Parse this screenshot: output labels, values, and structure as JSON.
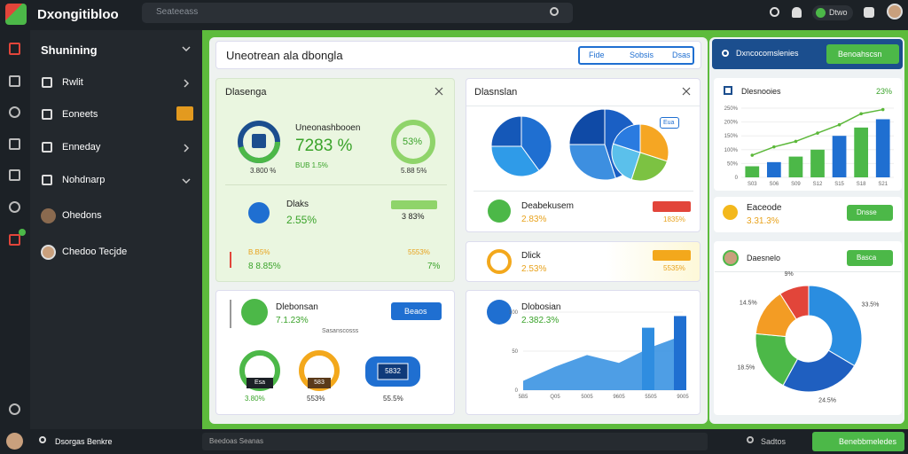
{
  "app": {
    "title": "Dxongitibloo",
    "search": "Seateeass",
    "status_pill": "Dtwo"
  },
  "sidebar": {
    "header": "Shunining",
    "items": [
      "Rwlit",
      "Eoneets",
      "Enneday",
      "Nohdnarp",
      "Ohedons",
      "Chedoo Tecjde"
    ]
  },
  "header": {
    "title": "Uneotrean ala dbongla",
    "tabs": [
      "Fide",
      "Sobsis",
      "Dsas"
    ]
  },
  "card_a": {
    "title": "Dlasenga",
    "metric_label": "Uneonashbooen",
    "metric_value": "7283 %",
    "metric_change": "BUB 1.5%",
    "ring_left_caption": "3.800 %",
    "ring_right": "53%",
    "ring_right_caption": "5.88 5%",
    "row1_label": "Dlaks",
    "row1_value": "2.55%",
    "row1_badge": "3 83%",
    "row2_left_top": "B.B5%",
    "row2_left": "8 8.85%",
    "row2_right_top": "5553%",
    "row2_right": "7%"
  },
  "card_b": {
    "title": "Dlasnslan",
    "pie_badge": "Eua",
    "row_label": "Deabekusem",
    "row_value": "2.83%",
    "row_caption": "1835%"
  },
  "card_c": {
    "label": "Dlick",
    "value": "2.53%",
    "caption": "5535%"
  },
  "card_d": {
    "title": "Dlebonsan",
    "value": "7.1.23%",
    "button": "Beaos",
    "caption": "Sasanscosss",
    "gauges": [
      "3.80%",
      "553%",
      "55.5%"
    ],
    "gauge_inner": [
      "Esa",
      "583",
      "5832"
    ]
  },
  "card_e": {
    "title": "Dlobosian",
    "value": "2.382.3%"
  },
  "right": {
    "header": "Dxncocomslenies",
    "button": "Benoahscsn",
    "card1_title": "Dlesnooies",
    "card1_value": "23%",
    "card2_label": "Eaceode",
    "card2_value": "3.31.3%",
    "card2_button": "Dnsse",
    "card3_title": "Daesnelo",
    "card3_button": "Basca"
  },
  "footer": {
    "user": "Dsorgas Benkre",
    "input": "Beedoas Seanas",
    "status": "Sadtos",
    "button": "Benebbmeledes"
  },
  "charts": {
    "pie_a": {
      "type": "pie",
      "values": [
        40,
        35,
        25
      ],
      "colors": [
        "#1f6fd1",
        "#2f9be8",
        "#1558b8"
      ]
    },
    "pie_b": {
      "type": "pie",
      "values": [
        45,
        30,
        25
      ],
      "colors": [
        "#1a5fc4",
        "#3d8fe0",
        "#0f4aa6"
      ]
    },
    "pie_c": {
      "type": "pie",
      "values": [
        30,
        25,
        25,
        20
      ],
      "colors": [
        "#f5a623",
        "#7cc242",
        "#5bc0eb",
        "#2a7be0"
      ]
    },
    "combo": {
      "type": "bar",
      "categories": [
        "S03",
        "S06",
        "S09",
        "S12",
        "S15",
        "S18",
        "S21"
      ],
      "series": [
        {
          "type": "bar",
          "colors": [
            "#4cb848",
            "#1f6fd1",
            "#4cb848",
            "#4cb848",
            "#1f6fd1",
            "#4cb848",
            "#1f6fd1"
          ],
          "values": [
            40,
            55,
            75,
            100,
            150,
            180,
            210
          ]
        },
        {
          "type": "line",
          "color": "#5cb83a",
          "values": [
            80,
            110,
            130,
            160,
            190,
            230,
            245
          ]
        }
      ],
      "ylim": [
        0,
        250
      ],
      "yticks": [
        0,
        {
          "value": 50,
          "label": "50%"
        },
        {
          "value": 100,
          "label": "100%"
        },
        {
          "value": 150,
          "label": "150%"
        },
        {
          "value": 200,
          "label": "200%"
        },
        {
          "value": 250,
          "label": "250%"
        }
      ]
    },
    "area": {
      "type": "area",
      "categories": [
        "5B5",
        "Q05",
        "5005",
        "9605",
        "5505",
        "9005"
      ],
      "series": [
        {
          "type": "area",
          "color": "#2f8de0",
          "values": [
            12,
            30,
            45,
            35,
            55,
            70
          ]
        },
        {
          "type": "bar",
          "colors": [
            "#1f6fd1",
            "#4cb848",
            "#1f6fd1",
            "#4cb848",
            "#2f8de0",
            "#1f6fd1"
          ],
          "values": [
            null,
            null,
            null,
            null,
            80,
            95
          ]
        }
      ],
      "ylim": [
        0,
        100
      ],
      "yticks": [
        0,
        50,
        100
      ]
    },
    "donut": {
      "type": "pie",
      "values": [
        33.5,
        24.5,
        18.5,
        14.5,
        9
      ],
      "value_labels": [
        "33.5%",
        "24.5%",
        "18.5%",
        "14.5%",
        "9%"
      ],
      "colors": [
        "#2a8de0",
        "#1f5fc0",
        "#4cb848",
        "#f39c24",
        "#e2453a"
      ]
    }
  }
}
